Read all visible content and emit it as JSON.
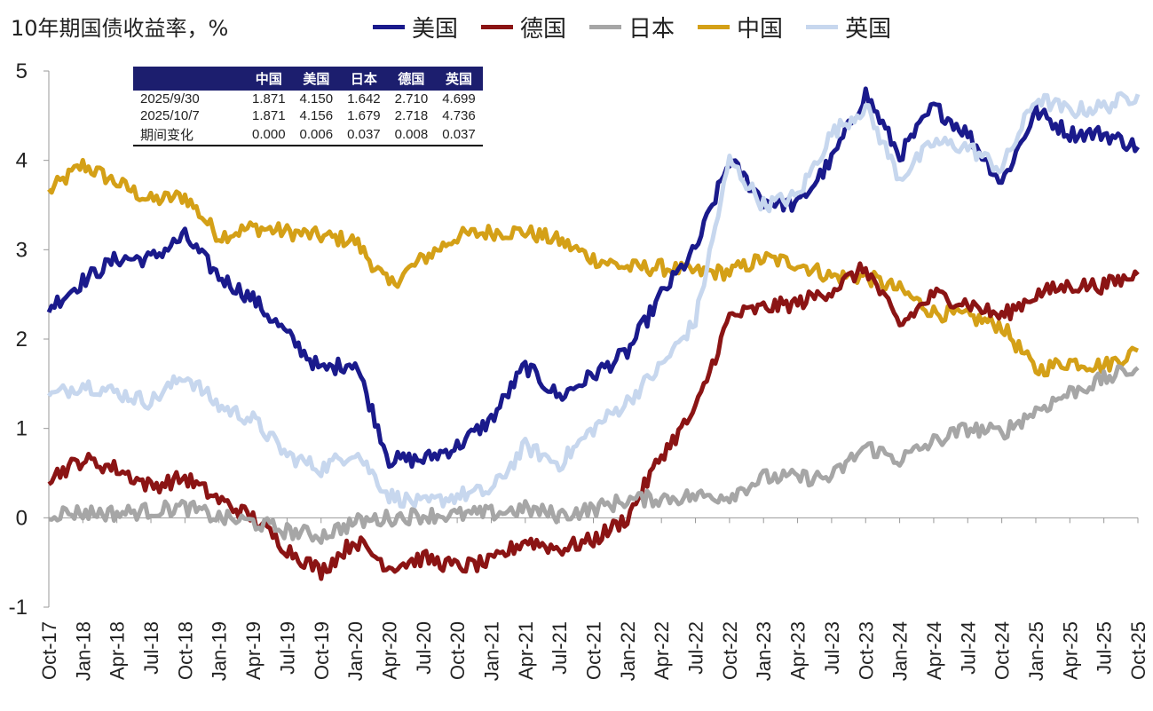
{
  "title": "10年期国债收益率，%",
  "legend": [
    {
      "name": "美国",
      "color": "#1a1a8c"
    },
    {
      "name": "德国",
      "color": "#8b1414"
    },
    {
      "name": "日本",
      "color": "#a6a6a6"
    },
    {
      "name": "中国",
      "color": "#d4a017"
    },
    {
      "name": "英国",
      "color": "#c7d7ee"
    }
  ],
  "table": {
    "headers": [
      "",
      "中国",
      "美国",
      "日本",
      "德国",
      "英国"
    ],
    "rows": [
      [
        "2025/9/30",
        "1.871",
        "4.150",
        "1.642",
        "2.710",
        "4.699"
      ],
      [
        "2025/10/7",
        "1.871",
        "4.156",
        "1.679",
        "2.718",
        "4.736"
      ],
      [
        "期间变化",
        "0.000",
        "0.006",
        "0.037",
        "0.008",
        "0.037"
      ]
    ]
  },
  "chart_data": {
    "type": "line",
    "ylim": [
      -1,
      5
    ],
    "yticks": [
      "-1",
      "0",
      "1",
      "2",
      "3",
      "4",
      "5"
    ],
    "xlabels": [
      "Oct-17",
      "Jan-18",
      "Apr-18",
      "Jul-18",
      "Oct-18",
      "Jan-19",
      "Apr-19",
      "Jul-19",
      "Oct-19",
      "Jan-20",
      "Apr-20",
      "Jul-20",
      "Oct-20",
      "Jan-21",
      "Apr-21",
      "Jul-21",
      "Oct-21",
      "Jan-22",
      "Apr-22",
      "Jul-22",
      "Oct-22",
      "Jan-23",
      "Apr-23",
      "Jul-23",
      "Oct-23",
      "Jan-24",
      "Apr-24",
      "Jul-24",
      "Oct-24",
      "Jan-25",
      "Apr-25",
      "Jul-25",
      "Oct-25"
    ],
    "series": [
      {
        "name": "中国",
        "color": "#d4a017",
        "values": [
          3.65,
          3.95,
          3.75,
          3.55,
          3.6,
          3.15,
          3.25,
          3.2,
          3.15,
          3.1,
          2.6,
          2.9,
          3.15,
          3.2,
          3.2,
          3.1,
          2.9,
          2.8,
          2.8,
          2.75,
          2.75,
          2.9,
          2.85,
          2.7,
          2.7,
          2.55,
          2.3,
          2.25,
          2.15,
          1.65,
          1.75,
          1.7,
          1.87
        ]
      },
      {
        "name": "美国",
        "color": "#1a1a8c",
        "values": [
          2.35,
          2.65,
          2.9,
          2.9,
          3.15,
          2.7,
          2.45,
          2.05,
          1.65,
          1.75,
          0.65,
          0.65,
          0.8,
          1.1,
          1.7,
          1.35,
          1.6,
          1.85,
          2.5,
          3.0,
          4.0,
          3.55,
          3.5,
          4.0,
          4.75,
          4.05,
          4.6,
          4.3,
          3.75,
          4.55,
          4.3,
          4.3,
          4.15
        ]
      },
      {
        "name": "英国",
        "color": "#c7d7ee",
        "values": [
          1.35,
          1.5,
          1.4,
          1.3,
          1.6,
          1.25,
          1.1,
          0.7,
          0.55,
          0.75,
          0.25,
          0.15,
          0.25,
          0.3,
          0.8,
          0.6,
          1.0,
          1.3,
          1.7,
          2.2,
          4.0,
          3.5,
          3.6,
          4.3,
          4.6,
          3.8,
          4.2,
          4.15,
          3.9,
          4.7,
          4.55,
          4.6,
          4.74
        ]
      },
      {
        "name": "德国",
        "color": "#8b1414",
        "values": [
          0.45,
          0.65,
          0.55,
          0.35,
          0.45,
          0.2,
          0.0,
          -0.35,
          -0.6,
          -0.25,
          -0.55,
          -0.45,
          -0.55,
          -0.5,
          -0.25,
          -0.35,
          -0.25,
          0.0,
          0.7,
          1.2,
          2.25,
          2.35,
          2.4,
          2.55,
          2.8,
          2.15,
          2.5,
          2.4,
          2.25,
          2.5,
          2.6,
          2.6,
          2.72
        ]
      },
      {
        "name": "日本",
        "color": "#a6a6a6",
        "values": [
          0.05,
          0.06,
          0.05,
          0.08,
          0.12,
          0.0,
          -0.05,
          -0.15,
          -0.2,
          -0.05,
          0.0,
          0.03,
          0.03,
          0.05,
          0.1,
          0.03,
          0.1,
          0.2,
          0.22,
          0.24,
          0.25,
          0.45,
          0.45,
          0.45,
          0.8,
          0.65,
          0.85,
          1.0,
          0.95,
          1.2,
          1.4,
          1.55,
          1.68
        ]
      }
    ]
  }
}
